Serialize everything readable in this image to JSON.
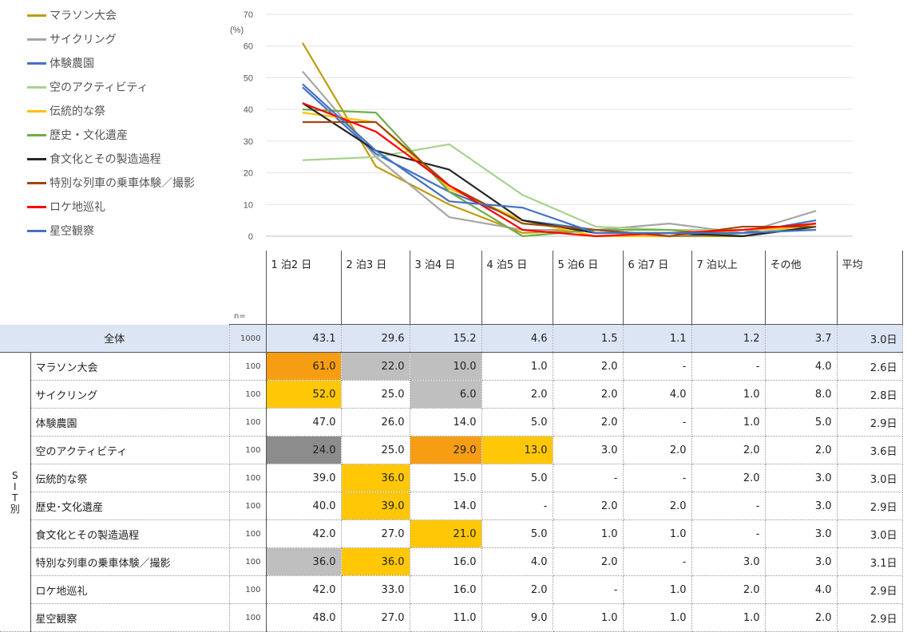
{
  "chart_data": {
    "type": "line",
    "y_unit": "(%)",
    "ylim": [
      0,
      70
    ],
    "yticks": [
      0,
      10,
      20,
      30,
      40,
      50,
      60,
      70
    ],
    "categories": [
      "1 泊2 日",
      "2 泊3 日",
      "3 泊4 日",
      "4 泊5 日",
      "5 泊6 日",
      "6 泊7 日",
      "7 泊以上",
      "その他"
    ],
    "grid": true,
    "legend_position": "left",
    "series": [
      {
        "name": "マラソン大会",
        "color": "#c09b0c",
        "values": [
          61.0,
          22.0,
          10.0,
          1.0,
          2.0,
          0,
          0,
          4.0
        ]
      },
      {
        "name": "サイクリング",
        "color": "#a6a6a6",
        "values": [
          52.0,
          25.0,
          6.0,
          2.0,
          2.0,
          4.0,
          1.0,
          8.0
        ]
      },
      {
        "name": "体験農園",
        "color": "#4472c4",
        "values": [
          47.0,
          26.0,
          14.0,
          5.0,
          2.0,
          0,
          1.0,
          5.0
        ]
      },
      {
        "name": "空のアクティビティ",
        "color": "#a9d18e",
        "values": [
          24.0,
          25.0,
          29.0,
          13.0,
          3.0,
          2.0,
          2.0,
          2.0
        ]
      },
      {
        "name": "伝統的な祭",
        "color": "#ffc000",
        "values": [
          39.0,
          36.0,
          15.0,
          5.0,
          0,
          0,
          2.0,
          3.0
        ]
      },
      {
        "name": "歴史・文化遺産",
        "color": "#70ad47",
        "values": [
          40.0,
          39.0,
          14.0,
          0,
          2.0,
          2.0,
          0,
          3.0
        ]
      },
      {
        "name": "食文化とその製造過程",
        "color": "#262626",
        "values": [
          42.0,
          27.0,
          21.0,
          5.0,
          1.0,
          1.0,
          0,
          3.0
        ]
      },
      {
        "name": "特別な列車の乗車体験／撮影",
        "color": "#9e480e",
        "values": [
          36.0,
          36.0,
          16.0,
          4.0,
          2.0,
          0,
          3.0,
          3.0
        ]
      },
      {
        "name": "ロケ地巡礼",
        "color": "#ff0000",
        "values": [
          42.0,
          33.0,
          16.0,
          2.0,
          0,
          1.0,
          2.0,
          4.0
        ]
      },
      {
        "name": "星空観察",
        "color": "#4472c4",
        "values": [
          48.0,
          27.0,
          11.0,
          9.0,
          1.0,
          1.0,
          1.0,
          2.0
        ]
      }
    ]
  },
  "table": {
    "n_label": "n=",
    "avg_header": "平均",
    "sit_label": [
      "S",
      "I",
      "T",
      "別"
    ],
    "overall": {
      "label": "全体",
      "n": "1000",
      "cells": [
        "43.1",
        "29.6",
        "15.2",
        "4.6",
        "1.5",
        "1.1",
        "1.2",
        "3.7"
      ],
      "avg": "3.0日"
    },
    "rows": [
      {
        "label": "マラソン大会",
        "n": "100",
        "cells": [
          "61.0",
          "22.0",
          "10.0",
          "1.0",
          "2.0",
          "-",
          "-",
          "4.0"
        ],
        "avg": "2.6日",
        "hl": [
          "orange",
          "gray",
          "gray",
          "",
          "",
          "",
          "",
          ""
        ]
      },
      {
        "label": "サイクリング",
        "n": "100",
        "cells": [
          "52.0",
          "25.0",
          "6.0",
          "2.0",
          "2.0",
          "4.0",
          "1.0",
          "8.0"
        ],
        "avg": "2.8日",
        "hl": [
          "yellow",
          "",
          "gray",
          "",
          "",
          "",
          "",
          ""
        ]
      },
      {
        "label": "体験農園",
        "n": "100",
        "cells": [
          "47.0",
          "26.0",
          "14.0",
          "5.0",
          "2.0",
          "-",
          "1.0",
          "5.0"
        ],
        "avg": "2.9日",
        "hl": [
          "",
          "",
          "",
          "",
          "",
          "",
          "",
          ""
        ]
      },
      {
        "label": "空のアクティビティ",
        "n": "100",
        "cells": [
          "24.0",
          "25.0",
          "29.0",
          "13.0",
          "3.0",
          "2.0",
          "2.0",
          "2.0"
        ],
        "avg": "3.6日",
        "hl": [
          "dark",
          "",
          "orange",
          "yellow",
          "",
          "",
          "",
          ""
        ]
      },
      {
        "label": "伝統的な祭",
        "n": "100",
        "cells": [
          "39.0",
          "36.0",
          "15.0",
          "5.0",
          "-",
          "-",
          "2.0",
          "3.0"
        ],
        "avg": "3.0日",
        "hl": [
          "",
          "yellow",
          "",
          "",
          "",
          "",
          "",
          ""
        ]
      },
      {
        "label": "歴史･文化遺産",
        "n": "100",
        "cells": [
          "40.0",
          "39.0",
          "14.0",
          "-",
          "2.0",
          "2.0",
          "-",
          "3.0"
        ],
        "avg": "2.9日",
        "hl": [
          "",
          "yellow",
          "",
          "",
          "",
          "",
          "",
          ""
        ]
      },
      {
        "label": "食文化とその製造過程",
        "n": "100",
        "cells": [
          "42.0",
          "27.0",
          "21.0",
          "5.0",
          "1.0",
          "1.0",
          "-",
          "3.0"
        ],
        "avg": "3.0日",
        "hl": [
          "",
          "",
          "yellow",
          "",
          "",
          "",
          "",
          ""
        ]
      },
      {
        "label": "特別な列車の乗車体験／撮影",
        "n": "100",
        "cells": [
          "36.0",
          "36.0",
          "16.0",
          "4.0",
          "2.0",
          "-",
          "3.0",
          "3.0"
        ],
        "avg": "3.1日",
        "hl": [
          "gray",
          "yellow",
          "",
          "",
          "",
          "",
          "",
          ""
        ]
      },
      {
        "label": "ロケ地巡礼",
        "n": "100",
        "cells": [
          "42.0",
          "33.0",
          "16.0",
          "2.0",
          "-",
          "1.0",
          "2.0",
          "4.0"
        ],
        "avg": "2.9日",
        "hl": [
          "",
          "",
          "",
          "",
          "",
          "",
          "",
          ""
        ]
      },
      {
        "label": "星空観察",
        "n": "100",
        "cells": [
          "48.0",
          "27.0",
          "11.0",
          "9.0",
          "1.0",
          "1.0",
          "1.0",
          "2.0"
        ],
        "avg": "2.9日",
        "hl": [
          "",
          "",
          "",
          "",
          "",
          "",
          "",
          ""
        ]
      }
    ]
  }
}
